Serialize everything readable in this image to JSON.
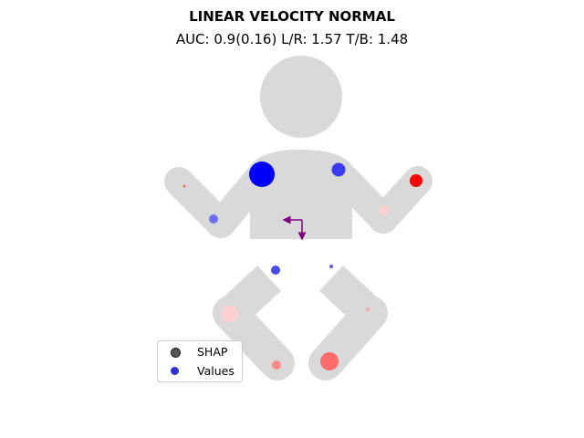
{
  "title": "LINEAR VELOCITY NORMAL",
  "subtitle": "AUC: 0.9(0.16) L/R: 1.57 T/B: 1.48",
  "colors": {
    "body": "#d9d9d9",
    "arrow": "#800080",
    "legend_shap": "#555555",
    "legend_values": "#2f2fe0"
  },
  "legend": {
    "shap_label": "SHAP",
    "values_label": "Values"
  },
  "chart_data": {
    "type": "scatter",
    "title": "LINEAR VELOCITY NORMAL",
    "subtitle": "AUC: 0.9(0.16) L/R: 1.57 T/B: 1.48",
    "markers": [
      {
        "region": "upper-left-arm-tip",
        "color": "#f07070",
        "size": 1.5
      },
      {
        "region": "left-shoulder",
        "color": "#0000ff",
        "size": 14
      },
      {
        "region": "right-shoulder",
        "color": "#3a3af0",
        "size": 7.5
      },
      {
        "region": "right-hand",
        "color": "#ff0000",
        "size": 7
      },
      {
        "region": "left-forearm",
        "color": "#7070f5",
        "size": 5
      },
      {
        "region": "right-forearm",
        "color": "#ffd0d0",
        "size": 5.5
      },
      {
        "region": "pelvis-left",
        "color": "#4a4af2",
        "size": 5
      },
      {
        "region": "pelvis-right",
        "color": "#5a5af3",
        "size": 2
      },
      {
        "region": "left-knee",
        "color": "#ffd0d0",
        "size": 9.5
      },
      {
        "region": "right-knee",
        "color": "#f7b0b0",
        "size": 2.5
      },
      {
        "region": "left-foot",
        "color": "#ff8a8a",
        "size": 5
      },
      {
        "region": "right-foot",
        "color": "#ff6a6a",
        "size": 10
      }
    ],
    "direction_arrows": [
      {
        "direction": "left"
      },
      {
        "direction": "down"
      }
    ],
    "legend": [
      "SHAP",
      "Values"
    ],
    "legend_placement": "lower-left",
    "grid": false
  }
}
